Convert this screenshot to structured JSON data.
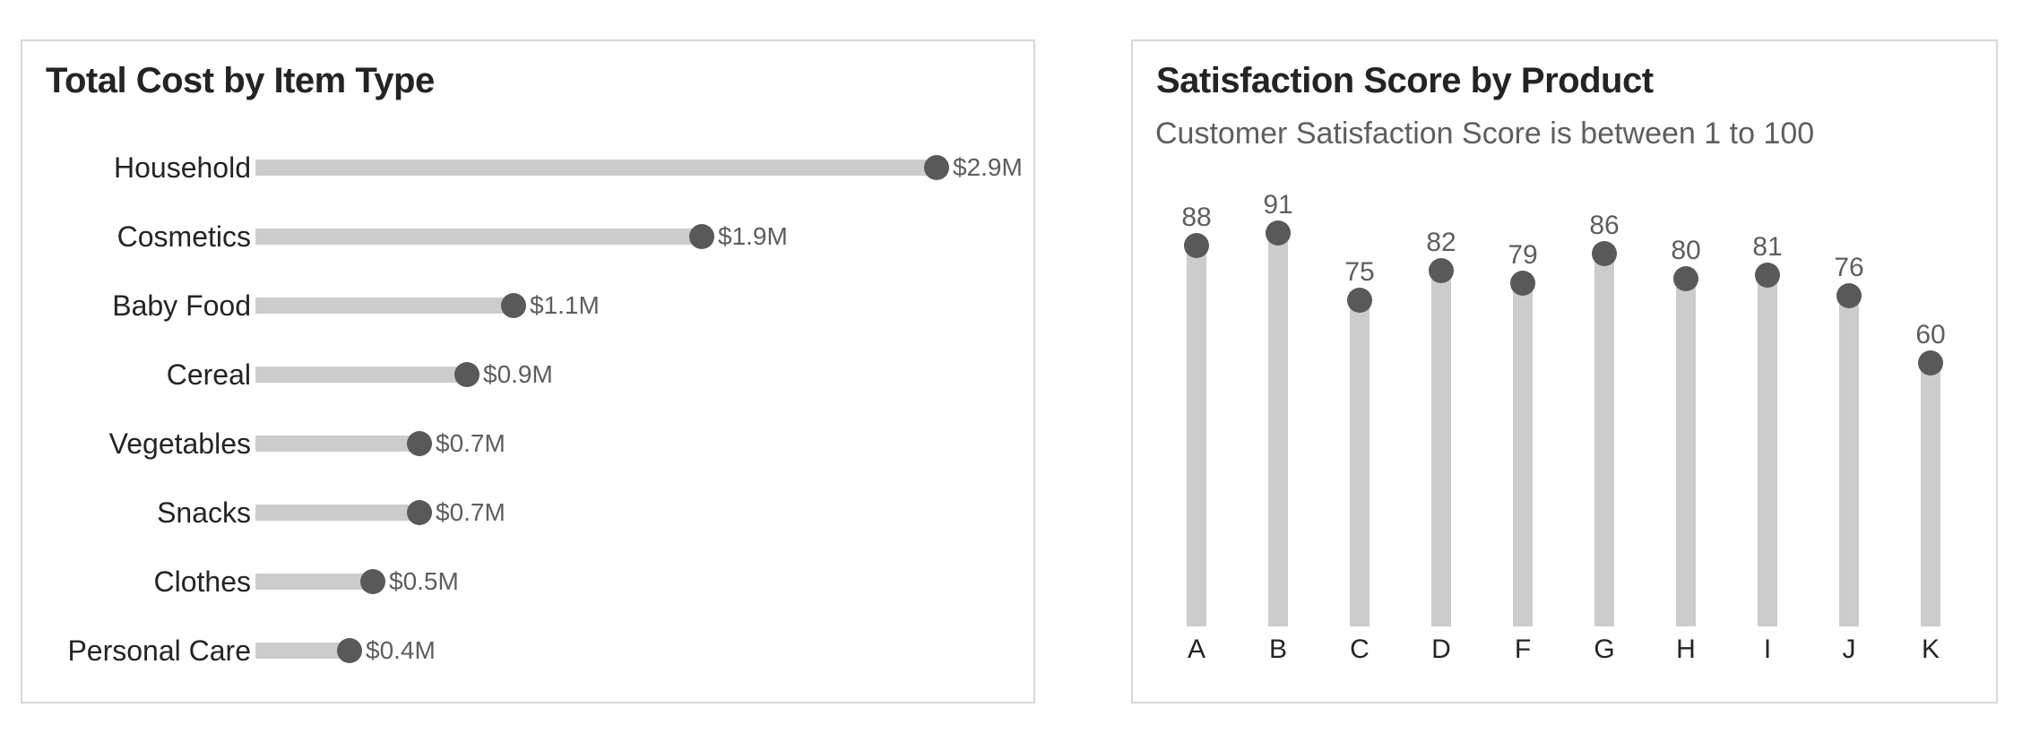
{
  "colors": {
    "background": "#ffffff",
    "panel_border": "#d8d8d8",
    "bar": "#cccccc",
    "dot": "#595959",
    "value_label": "#605e5c",
    "category_label": "#252423",
    "title": "#252423",
    "subtitle": "#605e5c"
  },
  "chart_data": [
    {
      "id": "total-cost-by-item-type",
      "type": "bar",
      "style": "lollipop",
      "orientation": "horizontal",
      "title": "Total Cost by Item Type",
      "categories": [
        "Household",
        "Cosmetics",
        "Baby Food",
        "Cereal",
        "Vegetables",
        "Snacks",
        "Clothes",
        "Personal Care"
      ],
      "values": [
        2.9,
        1.9,
        1.1,
        0.9,
        0.7,
        0.7,
        0.5,
        0.4
      ],
      "value_labels": [
        "$2.9M",
        "$1.9M",
        "$1.1M",
        "$0.9M",
        "$0.7M",
        "$0.7M",
        "$0.5M",
        "$0.4M"
      ],
      "xlim": [
        0,
        2.9
      ],
      "grid": false,
      "legend": "none",
      "axis_labels": "none"
    },
    {
      "id": "satisfaction-score-by-product",
      "type": "bar",
      "style": "lollipop",
      "orientation": "vertical",
      "title": "Satisfaction Score by Product",
      "subtitle": "Customer Satisfaction Score is between 1 to 100",
      "categories": [
        "A",
        "B",
        "C",
        "D",
        "F",
        "G",
        "H",
        "I",
        "J",
        "K"
      ],
      "values": [
        88,
        91,
        75,
        82,
        79,
        86,
        80,
        81,
        76,
        60
      ],
      "value_labels": [
        "88",
        "91",
        "75",
        "82",
        "79",
        "86",
        "80",
        "81",
        "76",
        "60"
      ],
      "ylim": [
        0,
        100
      ],
      "grid": false,
      "legend": "none"
    }
  ]
}
